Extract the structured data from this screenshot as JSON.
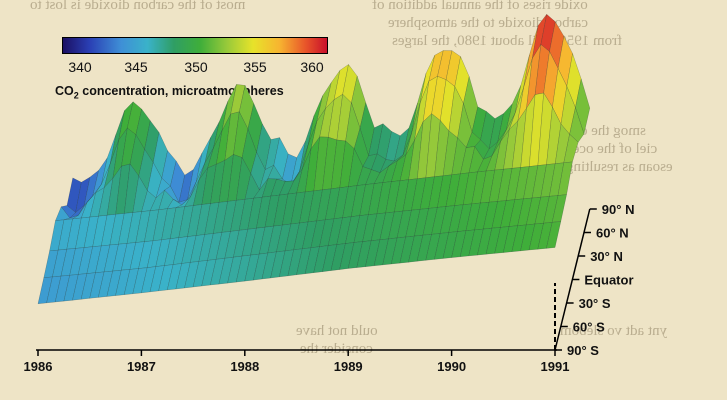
{
  "chart_data": {
    "type": "area",
    "x": [
      1986,
      1987,
      1988,
      1989,
      1990,
      1991
    ],
    "x_tick_labels": [
      "1986",
      "1987",
      "1988",
      "1989",
      "1990",
      "1991"
    ],
    "latitudes": [
      "90° S",
      "60° S",
      "30° S",
      "Equator",
      "30° N",
      "60° N",
      "90° N"
    ],
    "colorbar": {
      "ticks": [
        "340",
        "345",
        "350",
        "355",
        "360"
      ],
      "range": [
        338,
        362
      ],
      "title_prefix": "CO",
      "title_sub": "2",
      "title_suffix": " concentration, microatmospheres"
    },
    "series": [
      {
        "latitude": "90° S",
        "values": [
          343.5,
          344.8,
          346.2,
          347.7,
          349.0,
          350.2
        ]
      },
      {
        "latitude": "60° S",
        "values": [
          343.8,
          345.0,
          346.5,
          348.0,
          349.3,
          350.5
        ]
      },
      {
        "latitude": "30° S",
        "values": [
          344.2,
          345.4,
          346.9,
          348.4,
          349.7,
          350.9
        ]
      },
      {
        "latitude": "Equator",
        "values": [
          345.0,
          346.3,
          347.8,
          349.3,
          350.7,
          352.0
        ]
      },
      {
        "latitude": "30° N",
        "peaks": [
          348.5,
          350.0,
          352.5,
          354.5,
          357.0
        ],
        "troughs": [
          343.0,
          344.5,
          346.5,
          348.0,
          350.0
        ]
      },
      {
        "latitude": "60° N",
        "peaks": [
          350.0,
          352.0,
          354.5,
          357.0,
          360.0
        ],
        "troughs": [
          340.5,
          342.0,
          344.0,
          346.0,
          348.0
        ]
      },
      {
        "latitude": "90° N",
        "peaks": [
          350.5,
          352.5,
          355.0,
          357.5,
          361.0
        ],
        "troughs": [
          341.0,
          342.5,
          344.5,
          346.5,
          348.5
        ]
      }
    ]
  }
}
